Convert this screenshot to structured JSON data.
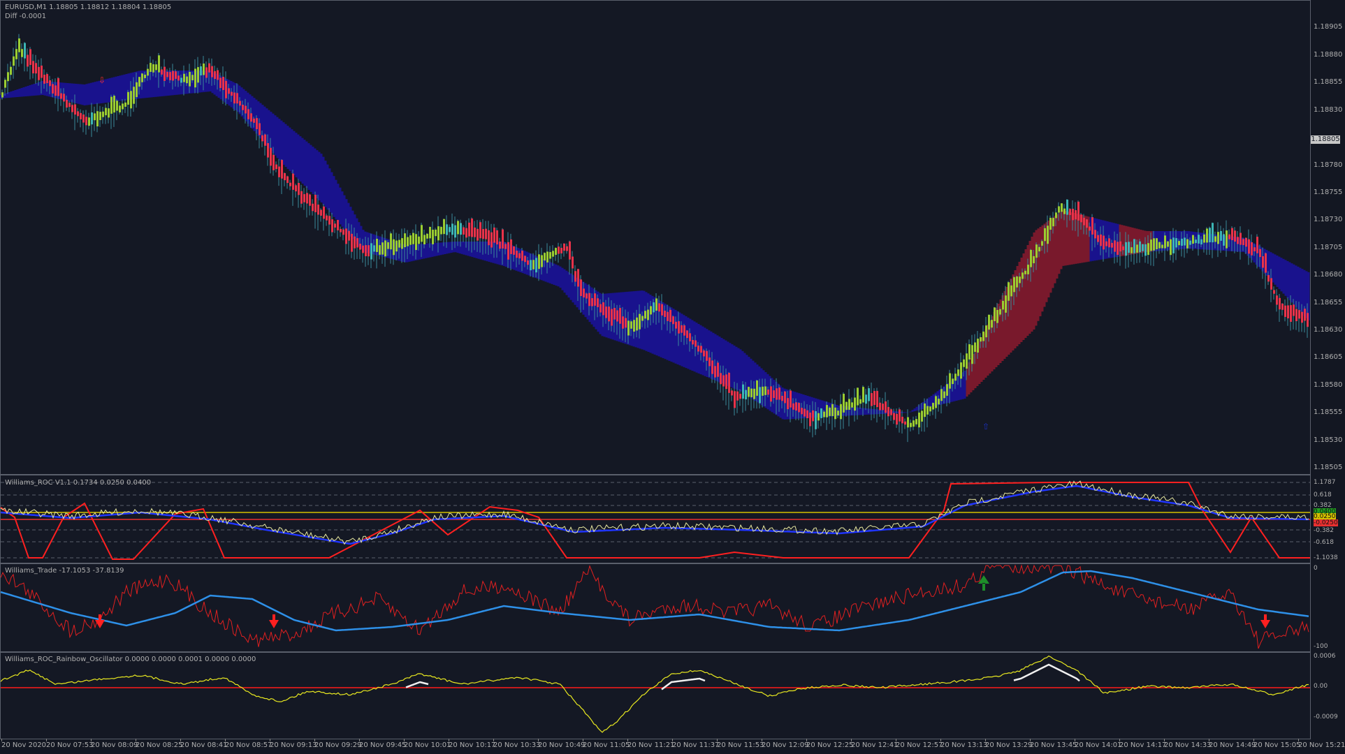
{
  "main": {
    "symbol_line": "EURUSD,M1  1.18805 1.18812 1.18804 1.18805",
    "diff_line": "Diff -0.0001",
    "current_price": "1.18805",
    "price_ticks": [
      "1.18905",
      "1.18880",
      "1.18855",
      "1.18830",
      "1.18780",
      "1.18755",
      "1.18730",
      "1.18705",
      "1.18680",
      "1.18655",
      "1.18630",
      "1.18605",
      "1.18580",
      "1.18555",
      "1.18530",
      "1.18505"
    ],
    "price_range": [
      1.185,
      1.1893
    ],
    "arrow_marks": [
      {
        "bar": 140,
        "direction": "down"
      },
      {
        "bar": 1405,
        "direction": "up"
      }
    ],
    "colors": {
      "bull_bar": "#9acd32",
      "bear_bar": "#e8334a",
      "neutral_bar": "#3cb5b5",
      "cloud_down": "#1a12a0",
      "cloud_up": "#8b1a2e"
    }
  },
  "williams_roc": {
    "label": "Williams_ROC V1.1 0.1734 0.0250 0.0400",
    "level_ticks": [
      "1.1787",
      "0.618",
      "0.382",
      "0.0400",
      "0.0250",
      "-0.382",
      "-0.618",
      "-1.1038"
    ],
    "highlight_green": "0.0400",
    "highlight_red": "-0.0250",
    "colors": {
      "signal": "#e8e8a0",
      "smooth": "#2035ff",
      "envelope": "#ff2020",
      "level_green": "#22a022",
      "level_red": "#e83030",
      "level_yellow": "#d4c000"
    }
  },
  "williams_trade": {
    "label": "Williams_Trade -17.1053 -37.8139",
    "level_ticks": [
      "0",
      "-100"
    ],
    "signals": [
      {
        "bar": 142,
        "direction": "down"
      },
      {
        "bar": 391,
        "direction": "down"
      },
      {
        "bar": 1407,
        "direction": "up"
      },
      {
        "bar": 1810,
        "direction": "down"
      }
    ],
    "colors": {
      "fast": "#e02020",
      "slow": "#2e90e8",
      "arrow_down": "#ff2020",
      "arrow_up": "#1e8e2a"
    }
  },
  "rainbow": {
    "label": "Williams_ROC_Rainbow_Oscillator 0.0000 0.0000 0.0001 0.0000 0.0000",
    "level_ticks": [
      "0.0006",
      "0.00",
      "-0.0009"
    ],
    "colors": {
      "osc": "#e8e820",
      "hist": "#f0f0f0",
      "zero": "#ff1a1a"
    }
  },
  "time_axis": [
    "20 Nov 2020",
    "20 Nov 07:53",
    "20 Nov 08:09",
    "20 Nov 08:25",
    "20 Nov 08:41",
    "20 Nov 08:57",
    "20 Nov 09:13",
    "20 Nov 09:29",
    "20 Nov 09:45",
    "20 Nov 10:01",
    "20 Nov 10:17",
    "20 Nov 10:33",
    "20 Nov 10:49",
    "20 Nov 11:05",
    "20 Nov 11:21",
    "20 Nov 11:37",
    "20 Nov 11:53",
    "20 Nov 12:09",
    "20 Nov 12:25",
    "20 Nov 12:41",
    "20 Nov 12:57",
    "20 Nov 13:13",
    "20 Nov 13:29",
    "20 Nov 13:45",
    "20 Nov 14:01",
    "20 Nov 14:17",
    "20 Nov 14:33",
    "20 Nov 14:49",
    "20 Nov 15:05",
    "20 Nov 15:21"
  ]
}
